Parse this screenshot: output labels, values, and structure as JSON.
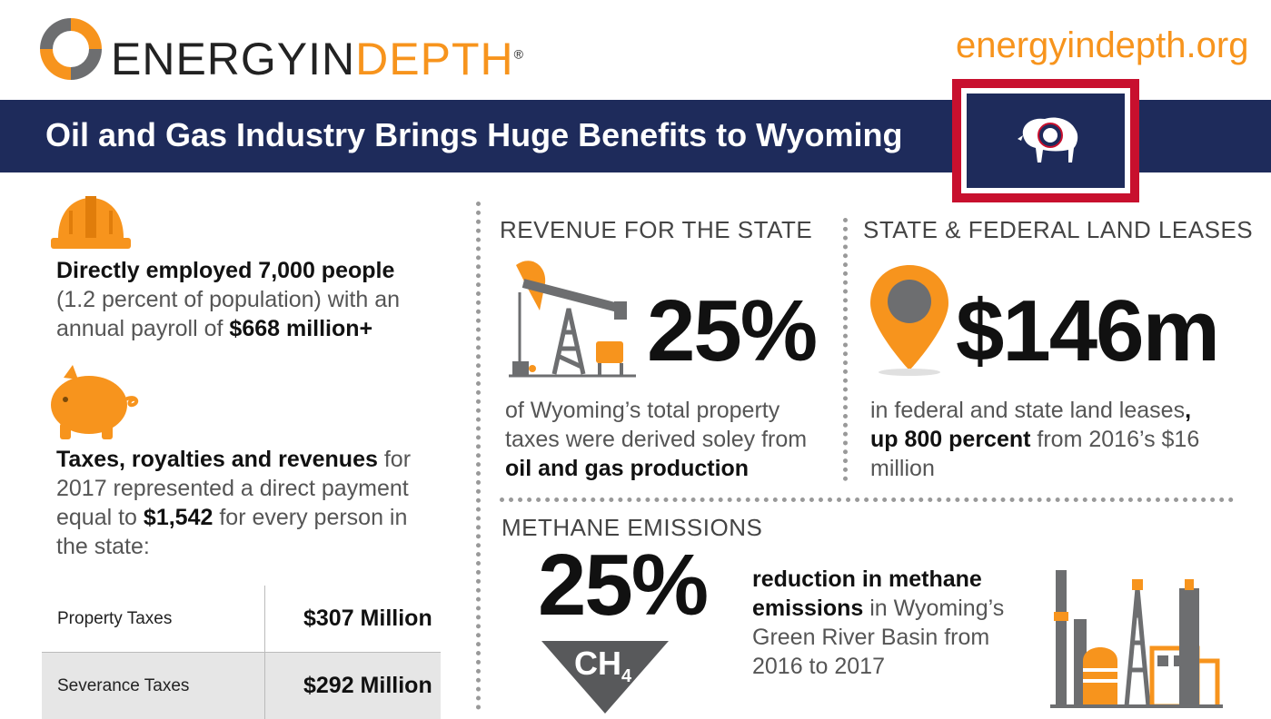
{
  "header": {
    "logo_prefix": "ENERGYIN",
    "logo_suffix": "DEPTH",
    "registered": "®",
    "site_url": "energyindepth.org",
    "title": "Oil and Gas Industry Brings Huge Benefits to Wyoming"
  },
  "left": {
    "employment_bold": "Directly employed 7,000 people",
    "employment_rest": "(1.2 percent of population) with an annual payroll of",
    "employment_amount": "$668 million+",
    "taxes_bold": "Taxes, royalties and revenues",
    "taxes_rest_1": "for 2017 represented a direct payment equal to",
    "taxes_amount": "$1,542",
    "taxes_rest_2": "for every person in the state:",
    "table": [
      {
        "label": "Property Taxes",
        "value": "$307 Million"
      },
      {
        "label": "Severance Taxes",
        "value": "$292 Million"
      }
    ]
  },
  "revenue": {
    "heading": "REVENUE FOR THE STATE",
    "stat": "25%",
    "text_1": "of Wyoming’s total property taxes were derived soley from",
    "text_bold": "oil and gas production"
  },
  "leases": {
    "heading": "STATE & FEDERAL LAND LEASES",
    "stat": "$146m",
    "text_1": "in federal and state land leases",
    "comma": ",",
    "text_bold": "up 800 percent",
    "text_2": "from 2016’s $16 million"
  },
  "methane": {
    "heading": "METHANE EMISSIONS",
    "stat": "25%",
    "arrow_label": "CH",
    "arrow_sub": "4",
    "text_bold": "reduction in methane emissions",
    "text_rest": "in Wyoming’s Green River Basin from 2016 to 2017"
  },
  "colors": {
    "navy": "#1e2b5b",
    "orange": "#f7941d",
    "red": "#c8102e",
    "gray_icon": "#6d6e70"
  }
}
